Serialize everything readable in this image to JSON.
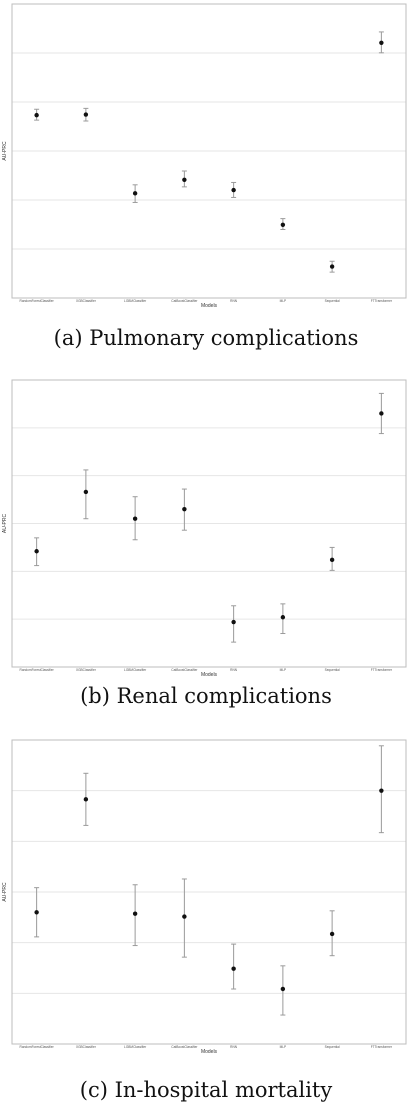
{
  "captions": [
    "(a) Pulmonary complications",
    "(b) Renal complications",
    "(c) In-hospital mortality"
  ],
  "chart_data": [
    {
      "type": "scatter",
      "title": "",
      "xlabel": "Models",
      "ylabel": "AU-PRC",
      "categories": [
        "RandomForestClassifier",
        "XGBClassifier",
        "LGBMClassifier",
        "CatBoostClassifier",
        "RNN",
        "MLP",
        "Sequential",
        "FTTransformer"
      ],
      "values": [
        0.622,
        0.624,
        0.356,
        0.402,
        0.367,
        0.249,
        0.107,
        0.868
      ],
      "lower": [
        0.605,
        0.602,
        0.325,
        0.378,
        0.342,
        0.233,
        0.088,
        0.834
      ],
      "upper": [
        0.642,
        0.645,
        0.385,
        0.432,
        0.393,
        0.27,
        0.125,
        0.905
      ],
      "ylim": [
        0.0,
        1.0
      ],
      "grid": true,
      "marker_color": "#111111",
      "errorbar_color": "#9a9a9a"
    },
    {
      "type": "scatter",
      "title": "",
      "xlabel": "Models",
      "ylabel": "AU-PRC",
      "categories": [
        "RandomForestClassifier",
        "XGBClassifier",
        "LGBMClassifier",
        "CatBoostClassifier",
        "RNN",
        "MLP",
        "Sequential",
        "FTTransformer"
      ],
      "values": [
        0.271,
        0.333,
        0.305,
        0.315,
        0.197,
        0.202,
        0.262,
        0.415
      ],
      "lower": [
        0.256,
        0.305,
        0.283,
        0.293,
        0.176,
        0.185,
        0.251,
        0.394
      ],
      "upper": [
        0.285,
        0.356,
        0.328,
        0.336,
        0.214,
        0.216,
        0.275,
        0.436
      ],
      "ylim": [
        0.15,
        0.45
      ],
      "grid": true,
      "marker_color": "#111111",
      "errorbar_color": "#9a9a9a"
    },
    {
      "type": "scatter",
      "title": "",
      "xlabel": "Models",
      "ylabel": "AU-PRC",
      "categories": [
        "RandomForestClassifier",
        "XGBClassifier",
        "LGBMClassifier",
        "CatBoostClassifier",
        "RNN",
        "MLP",
        "Sequential",
        "FTTransformer"
      ],
      "values": [
        0.261,
        0.339,
        0.26,
        0.258,
        0.222,
        0.208,
        0.246,
        0.345
      ],
      "lower": [
        0.244,
        0.321,
        0.238,
        0.23,
        0.208,
        0.19,
        0.231,
        0.316
      ],
      "upper": [
        0.278,
        0.357,
        0.28,
        0.284,
        0.239,
        0.224,
        0.262,
        0.376
      ],
      "ylim": [
        0.17,
        0.38
      ],
      "grid": true,
      "marker_color": "#111111",
      "errorbar_color": "#9a9a9a"
    }
  ]
}
